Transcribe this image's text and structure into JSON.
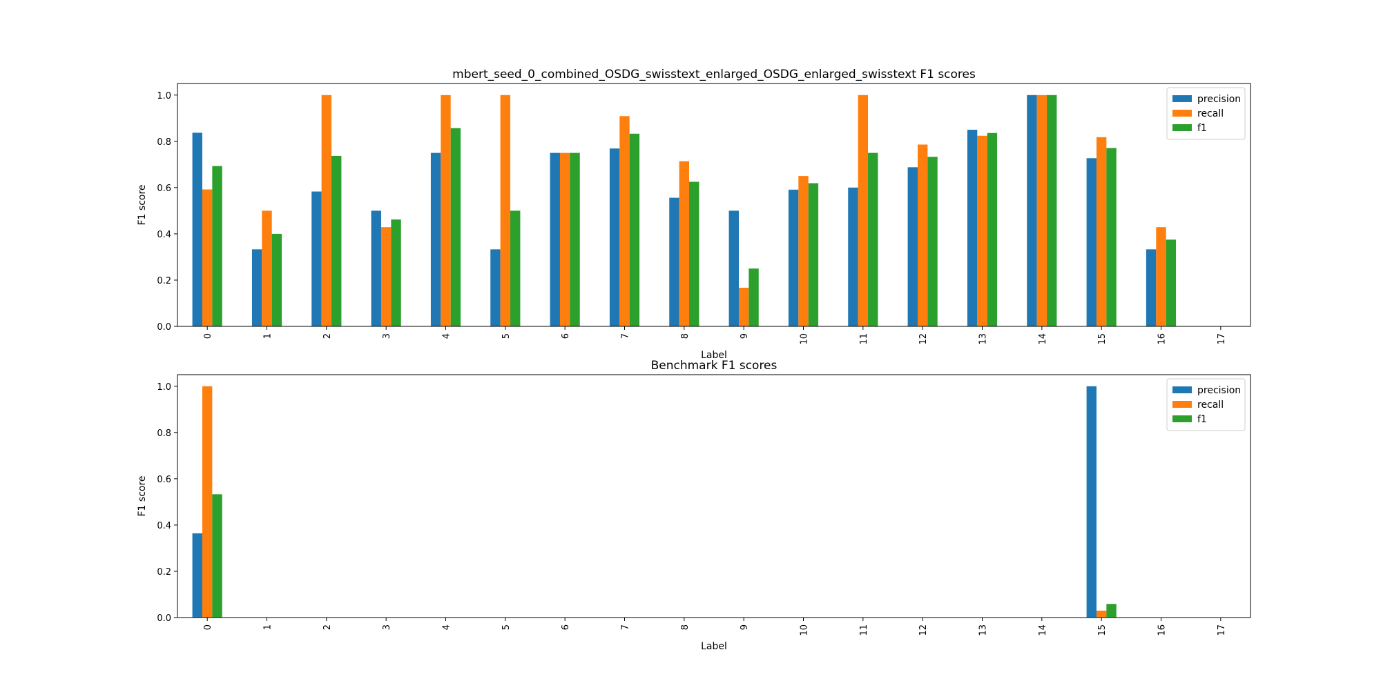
{
  "chart_data": [
    {
      "type": "bar",
      "title": "mbert_seed_0_combined_OSDG_swisstext_enlarged_OSDG_enlarged_swisstext F1 scores",
      "xlabel": "Label",
      "ylabel": "F1 score",
      "ylim": [
        0,
        1.05
      ],
      "yticks": [
        "0.0",
        "0.2",
        "0.4",
        "0.6",
        "0.8",
        "1.0"
      ],
      "categories": [
        "0",
        "1",
        "2",
        "3",
        "4",
        "5",
        "6",
        "7",
        "8",
        "9",
        "10",
        "11",
        "12",
        "13",
        "14",
        "15",
        "16",
        "17"
      ],
      "legend_position": "top-right",
      "grid": false,
      "series": [
        {
          "name": "precision",
          "color": "#1f77b4",
          "values": [
            0.837,
            0.333,
            0.583,
            0.5,
            0.75,
            0.333,
            0.75,
            0.769,
            0.556,
            0.5,
            0.591,
            0.6,
            0.688,
            0.85,
            1.0,
            0.727,
            0.333,
            0
          ]
        },
        {
          "name": "recall",
          "color": "#ff7f0e",
          "values": [
            0.592,
            0.5,
            1.0,
            0.429,
            1.0,
            1.0,
            0.75,
            0.909,
            0.714,
            0.167,
            0.65,
            1.0,
            0.786,
            0.824,
            1.0,
            0.818,
            0.429,
            0
          ]
        },
        {
          "name": "f1",
          "color": "#2ca02c",
          "values": [
            0.693,
            0.4,
            0.737,
            0.462,
            0.857,
            0.5,
            0.75,
            0.833,
            0.625,
            0.25,
            0.619,
            0.75,
            0.733,
            0.836,
            1.0,
            0.771,
            0.375,
            0
          ]
        }
      ]
    },
    {
      "type": "bar",
      "title": "Benchmark F1 scores",
      "xlabel": "Label",
      "ylabel": "F1 score",
      "ylim": [
        0,
        1.05
      ],
      "yticks": [
        "0.0",
        "0.2",
        "0.4",
        "0.6",
        "0.8",
        "1.0"
      ],
      "categories": [
        "0",
        "1",
        "2",
        "3",
        "4",
        "5",
        "6",
        "7",
        "8",
        "9",
        "10",
        "11",
        "12",
        "13",
        "14",
        "15",
        "16",
        "17"
      ],
      "legend_position": "top-right",
      "grid": false,
      "series": [
        {
          "name": "precision",
          "color": "#1f77b4",
          "values": [
            0.364,
            0,
            0,
            0,
            0,
            0,
            0,
            0,
            0,
            0,
            0,
            0,
            0,
            0,
            0,
            1.0,
            0,
            0
          ]
        },
        {
          "name": "recall",
          "color": "#ff7f0e",
          "values": [
            1.0,
            0,
            0,
            0,
            0,
            0,
            0,
            0,
            0,
            0,
            0,
            0,
            0,
            0,
            0,
            0.03,
            0,
            0
          ]
        },
        {
          "name": "f1",
          "color": "#2ca02c",
          "values": [
            0.533,
            0,
            0,
            0,
            0,
            0,
            0,
            0,
            0,
            0,
            0,
            0,
            0,
            0,
            0,
            0.059,
            0,
            0
          ]
        }
      ]
    }
  ]
}
